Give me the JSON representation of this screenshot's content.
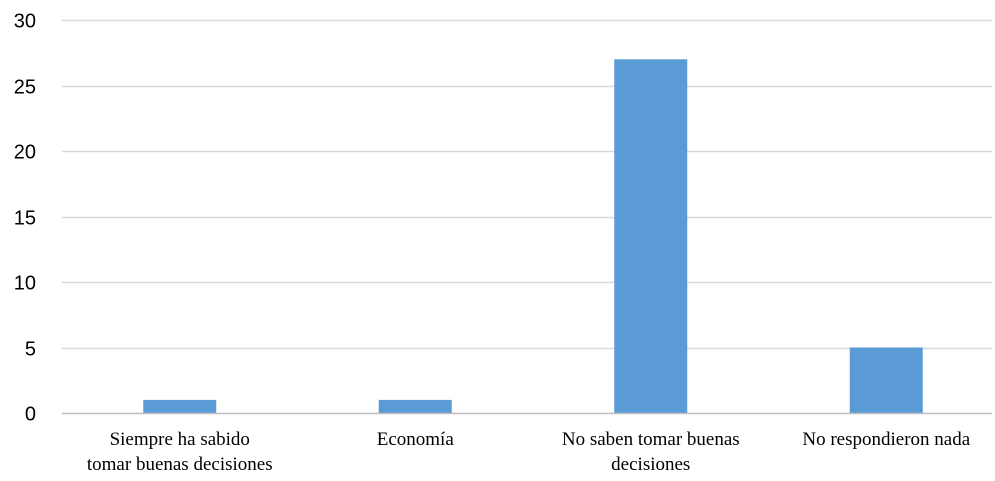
{
  "chart_data": {
    "type": "bar",
    "categories": [
      [
        "Siempre ha sabido",
        "tomar buenas decisiones"
      ],
      [
        "Economía"
      ],
      [
        "No saben tomar buenas",
        "decisiones"
      ],
      [
        "No respondieron nada"
      ]
    ],
    "values": [
      1,
      1,
      27,
      5
    ],
    "ylim": [
      0,
      30
    ],
    "yticks": [
      0,
      5,
      10,
      15,
      20,
      25,
      30
    ],
    "grid": true,
    "title": "",
    "xlabel": "",
    "ylabel": "",
    "colors": {
      "bar": "#5B9BD5",
      "grid": "#D9D9D9",
      "axis": "#BFBFBF",
      "text": "#000000"
    }
  }
}
